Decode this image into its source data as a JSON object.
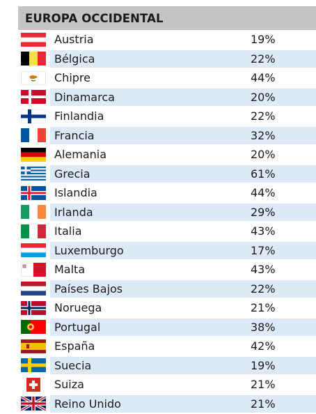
{
  "title": "EUROPA OCCIDENTAL",
  "rows": [
    {
      "country": "Austria",
      "value": "19%",
      "flag": "austria-flag-icon"
    },
    {
      "country": "Bélgica",
      "value": "22%",
      "flag": "belgium-flag-icon"
    },
    {
      "country": "Chipre",
      "value": "44%",
      "flag": "cyprus-flag-icon"
    },
    {
      "country": "Dinamarca",
      "value": "20%",
      "flag": "denmark-flag-icon"
    },
    {
      "country": "Finlandia",
      "value": "22%",
      "flag": "finland-flag-icon"
    },
    {
      "country": "Francia",
      "value": "32%",
      "flag": "france-flag-icon"
    },
    {
      "country": "Alemania",
      "value": "20%",
      "flag": "germany-flag-icon"
    },
    {
      "country": "Grecia",
      "value": "61%",
      "flag": "greece-flag-icon"
    },
    {
      "country": "Islandia",
      "value": "44%",
      "flag": "iceland-flag-icon"
    },
    {
      "country": "Irlanda",
      "value": "29%",
      "flag": "ireland-flag-icon"
    },
    {
      "country": "Italia",
      "value": "43%",
      "flag": "italy-flag-icon"
    },
    {
      "country": "Luxemburgo",
      "value": "17%",
      "flag": "luxembourg-flag-icon"
    },
    {
      "country": "Malta",
      "value": "43%",
      "flag": "malta-flag-icon"
    },
    {
      "country": "Países Bajos",
      "value": "22%",
      "flag": "netherlands-flag-icon"
    },
    {
      "country": "Noruega",
      "value": "21%",
      "flag": "norway-flag-icon"
    },
    {
      "country": "Portugal",
      "value": "38%",
      "flag": "portugal-flag-icon"
    },
    {
      "country": "España",
      "value": "42%",
      "flag": "spain-flag-icon"
    },
    {
      "country": "Suecia",
      "value": "19%",
      "flag": "sweden-flag-icon"
    },
    {
      "country": "Suiza",
      "value": "21%",
      "flag": "switzerland-flag-icon"
    },
    {
      "country": "Reino Unido",
      "value": "21%",
      "flag": "uk-flag-icon"
    }
  ],
  "colors": {
    "header_bg": "#c4c4c4",
    "row_alt_bg": "#dde9f7",
    "text": "#1a1a1a"
  }
}
